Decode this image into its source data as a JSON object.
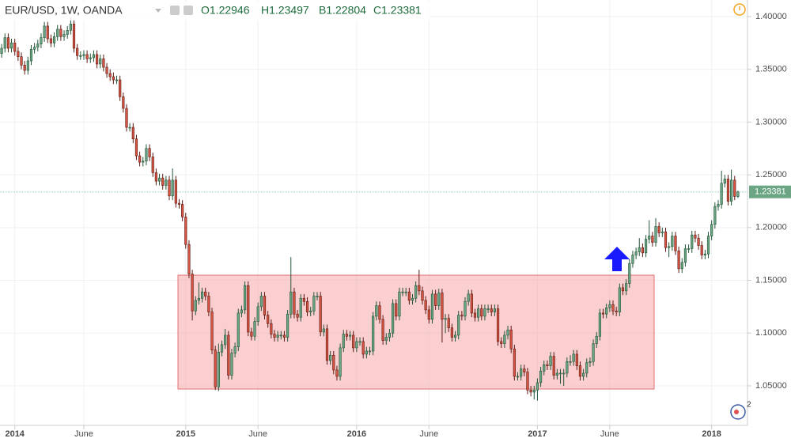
{
  "header": {
    "symbol": "EUR/USD, 1W, OANDA",
    "open": "O1.22946",
    "high": "H1.23497",
    "low": "B1.22804",
    "close": "C1.23381"
  },
  "badge": "2",
  "chart_data": {
    "type": "candlestick",
    "price_label": "1.23381",
    "up_color": "#6ba583",
    "down_color": "#d75442",
    "grid": true,
    "ylim": [
      1.0125,
      1.4157
    ],
    "yticks": [
      {
        "value": 1.05,
        "label": "1.05000"
      },
      {
        "value": 1.1,
        "label": "1.10000"
      },
      {
        "value": 1.15,
        "label": "1.15000"
      },
      {
        "value": 1.2,
        "label": "1.20000"
      },
      {
        "value": 1.25,
        "label": "1.25000"
      },
      {
        "value": 1.3,
        "label": "1.30000"
      },
      {
        "value": 1.35,
        "label": "1.35000"
      },
      {
        "value": 1.4,
        "label": "1.40000"
      }
    ],
    "xlim": [
      -0.5,
      224.5
    ],
    "xticks": [
      {
        "value": 4,
        "label": "2014"
      },
      {
        "value": 25,
        "label": "June"
      },
      {
        "value": 56,
        "label": "2015"
      },
      {
        "value": 78,
        "label": "June"
      },
      {
        "value": 108,
        "label": "2016"
      },
      {
        "value": 130,
        "label": "June"
      },
      {
        "value": 163,
        "label": "2017"
      },
      {
        "value": 185,
        "label": "June"
      },
      {
        "value": 216,
        "label": "2018"
      }
    ],
    "ohlc": [
      [
        1.365,
        1.374,
        1.361,
        1.37
      ],
      [
        1.37,
        1.384,
        1.366,
        1.38
      ],
      [
        1.38,
        1.384,
        1.366,
        1.37
      ],
      [
        1.37,
        1.379,
        1.366,
        1.375
      ],
      [
        1.375,
        1.379,
        1.363,
        1.367
      ],
      [
        1.367,
        1.371,
        1.358,
        1.362
      ],
      [
        1.362,
        1.366,
        1.35,
        1.354
      ],
      [
        1.354,
        1.358,
        1.345,
        1.349
      ],
      [
        1.349,
        1.362,
        1.345,
        1.358
      ],
      [
        1.358,
        1.373,
        1.354,
        1.369
      ],
      [
        1.369,
        1.375,
        1.365,
        1.371
      ],
      [
        1.371,
        1.378,
        1.367,
        1.374
      ],
      [
        1.374,
        1.384,
        1.37,
        1.38
      ],
      [
        1.38,
        1.395,
        1.376,
        1.391
      ],
      [
        1.391,
        1.395,
        1.375,
        1.379
      ],
      [
        1.379,
        1.383,
        1.371,
        1.375
      ],
      [
        1.375,
        1.385,
        1.371,
        1.381
      ],
      [
        1.381,
        1.392,
        1.377,
        1.388
      ],
      [
        1.388,
        1.392,
        1.377,
        1.381
      ],
      [
        1.381,
        1.387,
        1.377,
        1.383
      ],
      [
        1.383,
        1.391,
        1.379,
        1.387
      ],
      [
        1.387,
        1.399,
        1.383,
        1.393
      ],
      [
        1.393,
        1.397,
        1.366,
        1.37
      ],
      [
        1.37,
        1.374,
        1.359,
        1.363
      ],
      [
        1.363,
        1.367,
        1.359,
        1.363
      ],
      [
        1.363,
        1.368,
        1.359,
        1.364
      ],
      [
        1.364,
        1.368,
        1.356,
        1.36
      ],
      [
        1.36,
        1.365,
        1.356,
        1.361
      ],
      [
        1.361,
        1.368,
        1.357,
        1.364
      ],
      [
        1.364,
        1.368,
        1.351,
        1.355
      ],
      [
        1.355,
        1.364,
        1.351,
        1.36
      ],
      [
        1.36,
        1.364,
        1.348,
        1.352
      ],
      [
        1.352,
        1.356,
        1.342,
        1.346
      ],
      [
        1.346,
        1.35,
        1.339,
        1.343
      ],
      [
        1.343,
        1.347,
        1.336,
        1.34
      ],
      [
        1.34,
        1.344,
        1.336,
        1.34
      ],
      [
        1.34,
        1.344,
        1.32,
        1.324
      ],
      [
        1.324,
        1.328,
        1.309,
        1.313
      ],
      [
        1.313,
        1.317,
        1.291,
        1.295
      ],
      [
        1.295,
        1.299,
        1.291,
        1.295
      ],
      [
        1.295,
        1.299,
        1.28,
        1.284
      ],
      [
        1.284,
        1.288,
        1.264,
        1.268
      ],
      [
        1.268,
        1.272,
        1.258,
        1.262
      ],
      [
        1.262,
        1.267,
        1.258,
        1.263
      ],
      [
        1.263,
        1.279,
        1.259,
        1.275
      ],
      [
        1.275,
        1.279,
        1.263,
        1.267
      ],
      [
        1.267,
        1.271,
        1.248,
        1.252
      ],
      [
        1.252,
        1.256,
        1.24,
        1.244
      ],
      [
        1.244,
        1.251,
        1.24,
        1.247
      ],
      [
        1.247,
        1.251,
        1.236,
        1.24
      ],
      [
        1.24,
        1.249,
        1.236,
        1.245
      ],
      [
        1.245,
        1.249,
        1.226,
        1.23
      ],
      [
        1.23,
        1.256,
        1.226,
        1.245
      ],
      [
        1.245,
        1.249,
        1.219,
        1.223
      ],
      [
        1.223,
        1.227,
        1.218,
        1.222
      ],
      [
        1.222,
        1.226,
        1.206,
        1.21
      ],
      [
        1.21,
        1.214,
        1.18,
        1.184
      ],
      [
        1.184,
        1.188,
        1.152,
        1.156
      ],
      [
        1.156,
        1.16,
        1.112,
        1.121
      ],
      [
        1.121,
        1.135,
        1.117,
        1.131
      ],
      [
        1.131,
        1.148,
        1.127,
        1.133
      ],
      [
        1.133,
        1.143,
        1.129,
        1.139
      ],
      [
        1.139,
        1.143,
        1.131,
        1.135
      ],
      [
        1.135,
        1.139,
        1.116,
        1.12
      ],
      [
        1.12,
        1.124,
        1.08,
        1.084
      ],
      [
        1.084,
        1.088,
        1.046,
        1.049
      ],
      [
        1.049,
        1.09,
        1.045,
        1.082
      ],
      [
        1.082,
        1.093,
        1.078,
        1.089
      ],
      [
        1.089,
        1.104,
        1.085,
        1.098
      ],
      [
        1.098,
        1.102,
        1.056,
        1.06
      ],
      [
        1.06,
        1.085,
        1.056,
        1.081
      ],
      [
        1.081,
        1.091,
        1.077,
        1.087
      ],
      [
        1.087,
        1.123,
        1.083,
        1.119
      ],
      [
        1.119,
        1.126,
        1.115,
        1.122
      ],
      [
        1.122,
        1.149,
        1.118,
        1.145
      ],
      [
        1.145,
        1.149,
        1.097,
        1.101
      ],
      [
        1.101,
        1.105,
        1.093,
        1.097
      ],
      [
        1.097,
        1.115,
        1.093,
        1.111
      ],
      [
        1.111,
        1.129,
        1.107,
        1.125
      ],
      [
        1.125,
        1.139,
        1.121,
        1.135
      ],
      [
        1.135,
        1.139,
        1.113,
        1.117
      ],
      [
        1.117,
        1.121,
        1.105,
        1.109
      ],
      [
        1.109,
        1.113,
        1.095,
        1.099
      ],
      [
        1.099,
        1.103,
        1.092,
        1.096
      ],
      [
        1.096,
        1.102,
        1.092,
        1.098
      ],
      [
        1.098,
        1.102,
        1.094,
        1.098
      ],
      [
        1.098,
        1.102,
        1.092,
        1.096
      ],
      [
        1.096,
        1.122,
        1.092,
        1.118
      ],
      [
        1.118,
        1.172,
        1.114,
        1.139
      ],
      [
        1.139,
        1.143,
        1.114,
        1.118
      ],
      [
        1.118,
        1.122,
        1.111,
        1.115
      ],
      [
        1.115,
        1.137,
        1.111,
        1.133
      ],
      [
        1.133,
        1.137,
        1.126,
        1.13
      ],
      [
        1.13,
        1.134,
        1.116,
        1.12
      ],
      [
        1.12,
        1.125,
        1.116,
        1.121
      ],
      [
        1.121,
        1.139,
        1.117,
        1.135
      ],
      [
        1.135,
        1.139,
        1.131,
        1.135
      ],
      [
        1.135,
        1.139,
        1.097,
        1.101
      ],
      [
        1.101,
        1.108,
        1.097,
        1.104
      ],
      [
        1.104,
        1.108,
        1.07,
        1.074
      ],
      [
        1.074,
        1.083,
        1.07,
        1.079
      ],
      [
        1.079,
        1.083,
        1.061,
        1.065
      ],
      [
        1.065,
        1.069,
        1.055,
        1.059
      ],
      [
        1.059,
        1.09,
        1.055,
        1.086
      ],
      [
        1.086,
        1.103,
        1.082,
        1.099
      ],
      [
        1.099,
        1.103,
        1.093,
        1.097
      ],
      [
        1.097,
        1.102,
        1.093,
        1.098
      ],
      [
        1.098,
        1.102,
        1.082,
        1.086
      ],
      [
        1.086,
        1.096,
        1.082,
        1.092
      ],
      [
        1.092,
        1.096,
        1.088,
        1.092
      ],
      [
        1.092,
        1.096,
        1.076,
        1.08
      ],
      [
        1.08,
        1.087,
        1.076,
        1.083
      ],
      [
        1.083,
        1.087,
        1.079,
        1.083
      ],
      [
        1.083,
        1.12,
        1.079,
        1.116
      ],
      [
        1.116,
        1.13,
        1.112,
        1.126
      ],
      [
        1.126,
        1.13,
        1.109,
        1.113
      ],
      [
        1.113,
        1.117,
        1.089,
        1.093
      ],
      [
        1.093,
        1.1,
        1.089,
        1.096
      ],
      [
        1.096,
        1.104,
        1.092,
        1.1
      ],
      [
        1.1,
        1.132,
        1.096,
        1.128
      ],
      [
        1.128,
        1.132,
        1.112,
        1.116
      ],
      [
        1.116,
        1.143,
        1.112,
        1.139
      ],
      [
        1.139,
        1.143,
        1.135,
        1.139
      ],
      [
        1.139,
        1.143,
        1.135,
        1.139
      ],
      [
        1.139,
        1.143,
        1.127,
        1.131
      ],
      [
        1.131,
        1.137,
        1.127,
        1.133
      ],
      [
        1.133,
        1.149,
        1.129,
        1.145
      ],
      [
        1.145,
        1.16,
        1.136,
        1.14
      ],
      [
        1.14,
        1.144,
        1.127,
        1.131
      ],
      [
        1.131,
        1.135,
        1.118,
        1.122
      ],
      [
        1.122,
        1.126,
        1.109,
        1.113
      ],
      [
        1.113,
        1.141,
        1.109,
        1.137
      ],
      [
        1.137,
        1.141,
        1.122,
        1.126
      ],
      [
        1.126,
        1.142,
        1.122,
        1.138
      ],
      [
        1.138,
        1.142,
        1.091,
        1.113
      ],
      [
        1.113,
        1.118,
        1.1,
        1.114
      ],
      [
        1.114,
        1.118,
        1.101,
        1.105
      ],
      [
        1.105,
        1.109,
        1.092,
        1.096
      ],
      [
        1.096,
        1.102,
        1.092,
        1.098
      ],
      [
        1.098,
        1.121,
        1.094,
        1.117
      ],
      [
        1.117,
        1.121,
        1.112,
        1.116
      ],
      [
        1.116,
        1.134,
        1.112,
        1.13
      ],
      [
        1.13,
        1.141,
        1.126,
        1.137
      ],
      [
        1.137,
        1.141,
        1.115,
        1.119
      ],
      [
        1.119,
        1.123,
        1.111,
        1.115
      ],
      [
        1.115,
        1.127,
        1.111,
        1.123
      ],
      [
        1.123,
        1.127,
        1.112,
        1.116
      ],
      [
        1.116,
        1.127,
        1.112,
        1.123
      ],
      [
        1.123,
        1.127,
        1.119,
        1.123
      ],
      [
        1.123,
        1.127,
        1.116,
        1.12
      ],
      [
        1.12,
        1.127,
        1.116,
        1.123
      ],
      [
        1.123,
        1.127,
        1.088,
        1.092
      ],
      [
        1.092,
        1.096,
        1.086,
        1.09
      ],
      [
        1.09,
        1.102,
        1.086,
        1.098
      ],
      [
        1.098,
        1.107,
        1.094,
        1.103
      ],
      [
        1.103,
        1.107,
        1.081,
        1.085
      ],
      [
        1.085,
        1.089,
        1.055,
        1.059
      ],
      [
        1.059,
        1.063,
        1.055,
        1.059
      ],
      [
        1.059,
        1.07,
        1.055,
        1.066
      ],
      [
        1.066,
        1.07,
        1.059,
        1.063
      ],
      [
        1.063,
        1.067,
        1.042,
        1.046
      ],
      [
        1.046,
        1.05,
        1.04,
        1.044
      ],
      [
        1.044,
        1.05,
        1.037,
        1.046
      ],
      [
        1.046,
        1.057,
        1.036,
        1.053
      ],
      [
        1.053,
        1.068,
        1.049,
        1.064
      ],
      [
        1.064,
        1.074,
        1.06,
        1.07
      ],
      [
        1.07,
        1.074,
        1.065,
        1.069
      ],
      [
        1.069,
        1.082,
        1.065,
        1.078
      ],
      [
        1.078,
        1.082,
        1.056,
        1.06
      ],
      [
        1.06,
        1.066,
        1.056,
        1.062
      ],
      [
        1.062,
        1.066,
        1.052,
        1.062
      ],
      [
        1.062,
        1.066,
        1.05,
        1.062
      ],
      [
        1.062,
        1.077,
        1.058,
        1.073
      ],
      [
        1.073,
        1.079,
        1.069,
        1.073
      ],
      [
        1.073,
        1.084,
        1.069,
        1.08
      ],
      [
        1.08,
        1.084,
        1.065,
        1.069
      ],
      [
        1.069,
        1.073,
        1.055,
        1.059
      ],
      [
        1.059,
        1.066,
        1.055,
        1.062
      ],
      [
        1.062,
        1.076,
        1.058,
        1.072
      ],
      [
        1.072,
        1.077,
        1.068,
        1.073
      ],
      [
        1.073,
        1.094,
        1.069,
        1.09
      ],
      [
        1.09,
        1.101,
        1.086,
        1.097
      ],
      [
        1.097,
        1.123,
        1.093,
        1.119
      ],
      [
        1.119,
        1.123,
        1.114,
        1.118
      ],
      [
        1.118,
        1.128,
        1.114,
        1.124
      ],
      [
        1.124,
        1.131,
        1.12,
        1.127
      ],
      [
        1.127,
        1.131,
        1.117,
        1.121
      ],
      [
        1.121,
        1.125,
        1.116,
        1.12
      ],
      [
        1.12,
        1.147,
        1.116,
        1.143
      ],
      [
        1.143,
        1.147,
        1.136,
        1.14
      ],
      [
        1.14,
        1.151,
        1.136,
        1.147
      ],
      [
        1.147,
        1.17,
        1.143,
        1.166
      ],
      [
        1.166,
        1.178,
        1.162,
        1.174
      ],
      [
        1.174,
        1.181,
        1.17,
        1.177
      ],
      [
        1.177,
        1.19,
        1.173,
        1.181
      ],
      [
        1.181,
        1.185,
        1.172,
        1.176
      ],
      [
        1.176,
        1.193,
        1.172,
        1.189
      ],
      [
        1.189,
        1.207,
        1.185,
        1.192
      ],
      [
        1.192,
        1.196,
        1.182,
        1.186
      ],
      [
        1.186,
        1.209,
        1.182,
        1.201
      ],
      [
        1.201,
        1.205,
        1.191,
        1.195
      ],
      [
        1.195,
        1.2,
        1.191,
        1.196
      ],
      [
        1.196,
        1.2,
        1.177,
        1.181
      ],
      [
        1.181,
        1.186,
        1.172,
        1.182
      ],
      [
        1.182,
        1.196,
        1.178,
        1.192
      ],
      [
        1.192,
        1.196,
        1.174,
        1.178
      ],
      [
        1.178,
        1.182,
        1.157,
        1.161
      ],
      [
        1.161,
        1.171,
        1.157,
        1.167
      ],
      [
        1.167,
        1.184,
        1.163,
        1.18
      ],
      [
        1.18,
        1.184,
        1.176,
        1.18
      ],
      [
        1.18,
        1.197,
        1.176,
        1.193
      ],
      [
        1.193,
        1.197,
        1.186,
        1.19
      ],
      [
        1.19,
        1.194,
        1.179,
        1.183
      ],
      [
        1.183,
        1.187,
        1.17,
        1.174
      ],
      [
        1.174,
        1.179,
        1.17,
        1.175
      ],
      [
        1.175,
        1.196,
        1.171,
        1.192
      ],
      [
        1.192,
        1.207,
        1.188,
        1.203
      ],
      [
        1.203,
        1.224,
        1.199,
        1.22
      ],
      [
        1.22,
        1.226,
        1.216,
        1.222
      ],
      [
        1.222,
        1.254,
        1.218,
        1.242
      ],
      [
        1.242,
        1.25,
        1.238,
        1.246
      ],
      [
        1.246,
        1.25,
        1.221,
        1.225
      ],
      [
        1.225,
        1.255,
        1.221,
        1.245
      ],
      [
        1.245,
        1.249,
        1.226,
        1.2295
      ],
      [
        1.22946,
        1.23497,
        1.22804,
        1.23381
      ]
    ]
  }
}
